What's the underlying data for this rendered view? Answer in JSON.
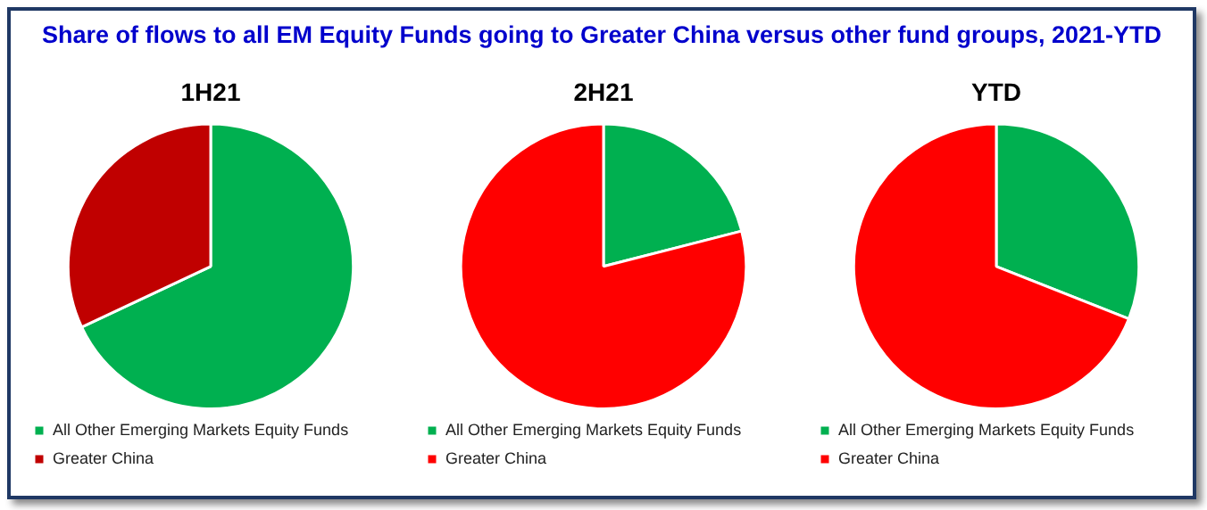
{
  "chart_data": [
    {
      "type": "other",
      "title": "Share of flows to all EM Equity Funds going to Greater China versus other fund groups, 2021-YTD"
    },
    {
      "type": "pie",
      "title": "1H21",
      "categories": [
        "All Other Emerging Markets Equity Funds",
        "Greater China"
      ],
      "values": [
        68,
        32
      ],
      "colors": [
        "#00b050",
        "#c00000"
      ],
      "legend": "bottom left"
    },
    {
      "type": "pie",
      "title": "2H21",
      "categories": [
        "All Other Emerging Markets Equity Funds",
        "Greater China"
      ],
      "values": [
        21,
        79
      ],
      "colors": [
        "#00b050",
        "#ff0000"
      ],
      "legend": "bottom left"
    },
    {
      "type": "pie",
      "title": "YTD",
      "categories": [
        "All Other Emerging Markets Equity Funds",
        "Greater China"
      ],
      "values": [
        31,
        69
      ],
      "colors": [
        "#00b050",
        "#ff0000"
      ],
      "legend": "bottom left"
    }
  ]
}
